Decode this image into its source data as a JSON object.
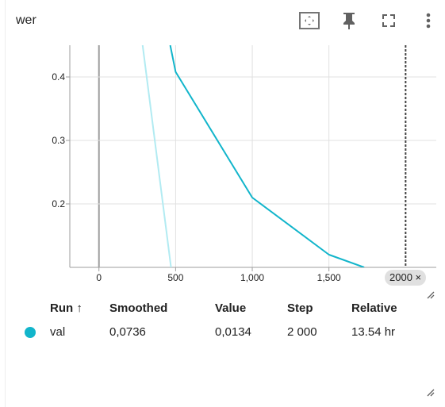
{
  "card": {
    "title": "wer"
  },
  "toolbar": {
    "fit_icon": "fit-domain-icon",
    "pin_icon": "pin-icon",
    "fullscreen_icon": "fullscreen-icon",
    "menu_icon": "more-vert-icon"
  },
  "chart_data": {
    "type": "line",
    "title": "wer",
    "xlabel": "",
    "ylabel": "",
    "x_ticks": [
      "0",
      "500",
      "1,000",
      "1,500"
    ],
    "y_ticks": [
      "0.2",
      "0.3",
      "0.4"
    ],
    "xlim": [
      -190,
      2200
    ],
    "ylim": [
      0.1,
      0.45
    ],
    "grid": true,
    "series": [
      {
        "name": "val",
        "role": "smoothed",
        "color": "#12b5cb",
        "x": [
          465,
          500,
          1000,
          1500,
          1730
        ],
        "y": [
          0.45,
          0.408,
          0.21,
          0.12,
          0.1
        ]
      },
      {
        "name": "val",
        "role": "raw",
        "color": "#b2ebf2",
        "x": [
          285,
          470
        ],
        "y": [
          0.45,
          0.1
        ]
      }
    ],
    "cursor": {
      "x": 2000,
      "label": "2000"
    }
  },
  "cursor_chip": {
    "label": "2000 ×"
  },
  "table": {
    "headers": {
      "run": "Run ↑",
      "smoothed": "Smoothed",
      "value": "Value",
      "step": "Step",
      "relative": "Relative"
    },
    "rows": [
      {
        "color": "#12b5cb",
        "run": "val",
        "smoothed": "0,0736",
        "value": "0,0134",
        "step": "2 000",
        "relative": "13.54 hr"
      }
    ]
  }
}
